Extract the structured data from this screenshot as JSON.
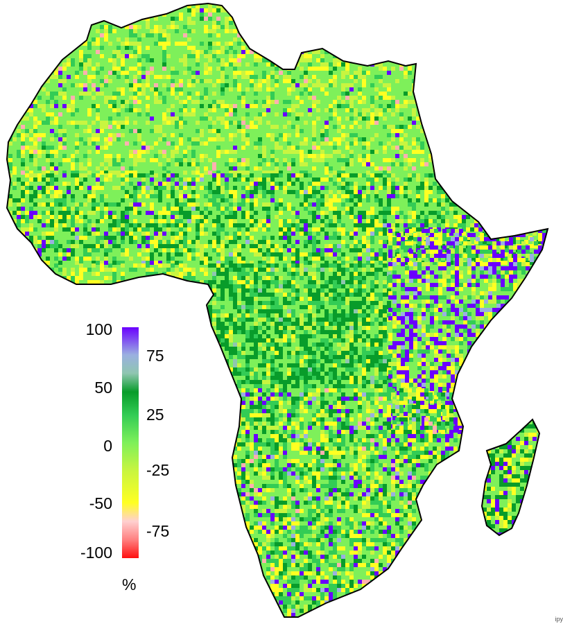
{
  "map": {
    "colorbar": {
      "min": -100,
      "max": 100,
      "left_ticks": [
        "100",
        "50",
        "0",
        "-50",
        "-100"
      ],
      "right_ticks": [
        "75",
        "25",
        "-25",
        "-75"
      ],
      "unit": "%",
      "colors": {
        "purple": "#6a00ff",
        "lavender": "#9ab0e0",
        "teal": "#8fc6b0",
        "dark_green": "#089c2a",
        "medium_green": "#33cc55",
        "light_green": "#7ef05a",
        "lime": "#c8f540",
        "yellow": "#ffff22",
        "pink": "#ffb0b0",
        "red": "#ff1010"
      }
    },
    "credit": "ipy"
  }
}
